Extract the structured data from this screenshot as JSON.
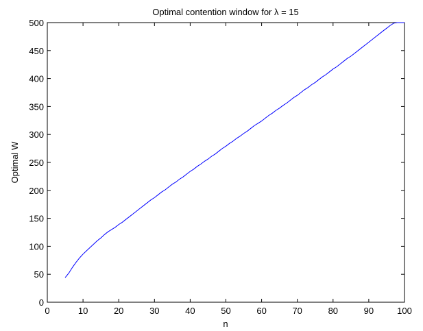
{
  "chart_data": {
    "type": "line",
    "title": "Optimal contention window for λ = 15",
    "xlabel": "n",
    "ylabel": "Optimal W",
    "xlim": [
      0,
      100
    ],
    "ylim": [
      0,
      500
    ],
    "xticks": [
      0,
      10,
      20,
      30,
      40,
      50,
      60,
      70,
      80,
      90,
      100
    ],
    "yticks": [
      0,
      50,
      100,
      150,
      200,
      250,
      300,
      350,
      400,
      450,
      500
    ],
    "grid": false,
    "colors": {
      "line": "#0000ff",
      "axes": "#000000",
      "background": "#ffffff"
    },
    "series": [
      {
        "x": [
          5,
          6,
          7,
          8,
          9,
          10,
          11,
          12,
          13,
          14,
          15,
          16,
          17,
          18,
          19,
          20,
          21,
          22,
          23,
          24,
          25,
          26,
          27,
          28,
          29,
          30,
          31,
          32,
          33,
          34,
          35,
          36,
          37,
          38,
          39,
          40,
          41,
          42,
          43,
          44,
          45,
          46,
          47,
          48,
          49,
          50,
          51,
          52,
          53,
          54,
          55,
          56,
          57,
          58,
          59,
          60,
          61,
          62,
          63,
          64,
          65,
          66,
          67,
          68,
          69,
          70,
          71,
          72,
          73,
          74,
          75,
          76,
          77,
          78,
          79,
          80,
          81,
          82,
          83,
          84,
          85,
          86,
          87,
          88,
          89,
          90,
          91,
          92,
          93,
          94,
          95,
          96,
          97,
          98,
          99,
          100
        ],
        "values": [
          44,
          52,
          62,
          71,
          79,
          86,
          92,
          98,
          104,
          110,
          115,
          121,
          126,
          130,
          134,
          139,
          143,
          148,
          153,
          158,
          163,
          168,
          173,
          178,
          183,
          187,
          192,
          197,
          201,
          206,
          211,
          215,
          220,
          224,
          229,
          234,
          238,
          243,
          247,
          252,
          256,
          261,
          265,
          270,
          275,
          279,
          284,
          288,
          293,
          297,
          302,
          306,
          311,
          316,
          320,
          324,
          329,
          334,
          338,
          343,
          347,
          352,
          356,
          361,
          366,
          370,
          375,
          380,
          384,
          389,
          393,
          398,
          403,
          407,
          412,
          417,
          421,
          426,
          431,
          436,
          440,
          445,
          450,
          455,
          460,
          465,
          470,
          475,
          480,
          485,
          490,
          495,
          499,
          500,
          500,
          500
        ]
      }
    ]
  }
}
